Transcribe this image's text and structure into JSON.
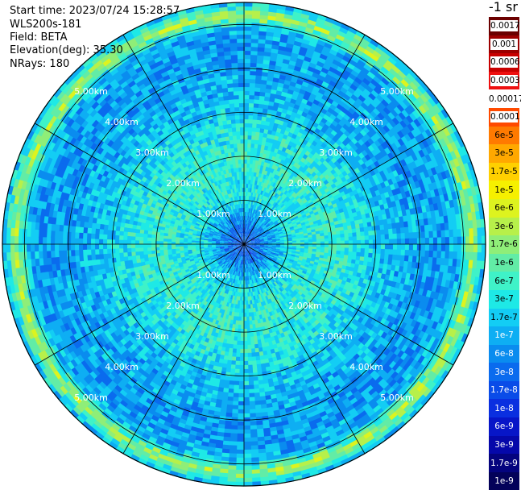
{
  "header": {
    "start_time": "Start time: 2023/07/24 15:28:57",
    "instrument": "WLS200s-181",
    "field": "Field: BETA",
    "elevation": "Elevation(deg): 35.30",
    "nrays": "NRays: 180"
  },
  "colorbar": {
    "unit_label": "-1 sr",
    "entries": [
      {
        "label": "0.0017",
        "color": "#6b0000",
        "boxed": true
      },
      {
        "label": "0.001",
        "color": "#9c0000",
        "boxed": true
      },
      {
        "label": "0.0006",
        "color": "#c80000",
        "boxed": true
      },
      {
        "label": "0.0003",
        "color": "#ee1010",
        "boxed": true
      },
      {
        "label": "0.00017",
        "color": "#ffffff",
        "boxed": false
      },
      {
        "label": "0.0001",
        "color": "#ff4a00",
        "boxed": true
      },
      {
        "label": "6e-5",
        "color": "#ff7a00",
        "boxed": false
      },
      {
        "label": "3e-5",
        "color": "#ffa800",
        "boxed": false
      },
      {
        "label": "1.7e-5",
        "color": "#ffd000",
        "boxed": false
      },
      {
        "label": "1e-5",
        "color": "#f6f000",
        "boxed": false
      },
      {
        "label": "6e-6",
        "color": "#ddf31f",
        "boxed": false
      },
      {
        "label": "3e-6",
        "color": "#b7f04a",
        "boxed": false
      },
      {
        "label": "1.7e-6",
        "color": "#8fee78",
        "boxed": false
      },
      {
        "label": "1e-6",
        "color": "#62eca6",
        "boxed": false
      },
      {
        "label": "6e-7",
        "color": "#3ff2c8",
        "boxed": false
      },
      {
        "label": "3e-7",
        "color": "#1ee9e6",
        "boxed": false
      },
      {
        "label": "1.7e-7",
        "color": "#13cdf4",
        "boxed": false
      },
      {
        "label": "1e-7",
        "color": "#0eaef3",
        "boxed": false
      },
      {
        "label": "6e-8",
        "color": "#0a8cef",
        "boxed": false
      },
      {
        "label": "3e-8",
        "color": "#0a6bee",
        "boxed": false
      },
      {
        "label": "1.7e-8",
        "color": "#0a4ce8",
        "boxed": false
      },
      {
        "label": "1e-8",
        "color": "#0a2fe0",
        "boxed": false
      },
      {
        "label": "6e-9",
        "color": "#0716c8",
        "boxed": false
      },
      {
        "label": "3e-9",
        "color": "#0508aa",
        "boxed": false
      },
      {
        "label": "1.7e-9",
        "color": "#04037e",
        "boxed": false
      },
      {
        "label": "1e-9",
        "color": "#030159",
        "boxed": false
      }
    ]
  },
  "chart_data": {
    "type": "heatmap",
    "projection": "polar",
    "field": "BETA",
    "nrays": 180,
    "range_rings_km": [
      1,
      2,
      3,
      4,
      5
    ],
    "range_labels": [
      "1.00km",
      "2.00km",
      "3.00km",
      "4.00km",
      "5.00km"
    ],
    "max_range_km": 5.5,
    "spoke_step_deg": 30,
    "value_range": [
      1e-09,
      0.0017
    ],
    "scale": "log",
    "profile": [
      {
        "range_km": 0.2,
        "value": 3e-08
      },
      {
        "range_km": 0.6,
        "value": 8e-08
      },
      {
        "range_km": 1.0,
        "value": 3e-07
      },
      {
        "range_km": 2.0,
        "value": 5e-07
      },
      {
        "range_km": 2.6,
        "value": 3e-07
      },
      {
        "range_km": 3.5,
        "value": 1.2e-07
      },
      {
        "range_km": 4.5,
        "value": 8e-08
      },
      {
        "range_km": 4.9,
        "value": 1.2e-07
      },
      {
        "range_km": 5.2,
        "value": 3e-06
      },
      {
        "range_km": 5.5,
        "value": 1e-07
      }
    ]
  },
  "colors": {
    "grid": "#000000",
    "range_label": "#ffffff",
    "background": "#ffffff"
  }
}
